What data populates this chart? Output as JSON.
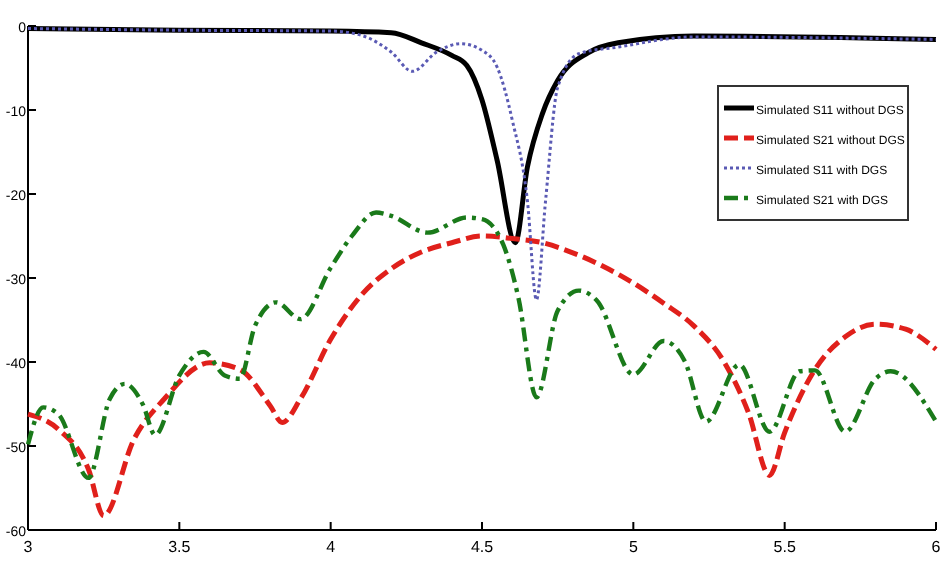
{
  "chart_data": {
    "type": "line",
    "xlim": [
      3,
      6
    ],
    "ylim": [
      -60,
      0
    ],
    "xticks": [
      3,
      3.5,
      4,
      4.5,
      5,
      5.5,
      6
    ],
    "yticks": [
      0,
      -10,
      -20,
      -30,
      -40,
      -50,
      -60
    ],
    "grid": false,
    "legend": "top right",
    "series": [
      {
        "name": "Simulated S11 without DGS",
        "color": "#000000",
        "line_style": "solid",
        "x": [
          3,
          3.5,
          4,
          4.2,
          4.3,
          4.4,
          4.45,
          4.5,
          4.55,
          4.61,
          4.65,
          4.7,
          4.75,
          4.85,
          4.95,
          5.2,
          6
        ],
        "values": [
          -0.3,
          -0.5,
          -0.6,
          -0.8,
          -2,
          -3.5,
          -4.7,
          -8.8,
          -16,
          -25.8,
          -16.8,
          -10.4,
          -6.5,
          -3.2,
          -2,
          -1.2,
          -1.6
        ]
      },
      {
        "name": "Simulated S21 without DGS",
        "color": "#e0201b",
        "line_style": "dashed",
        "x": [
          3,
          3.1,
          3.2,
          3.25,
          3.35,
          3.45,
          3.6,
          3.7,
          3.8,
          3.84,
          3.9,
          4,
          4.1,
          4.2,
          4.3,
          4.4,
          4.5,
          4.6,
          4.7,
          4.8,
          4.9,
          5,
          5.1,
          5.2,
          5.3,
          5.38,
          5.45,
          5.5,
          5.6,
          5.7,
          5.8,
          5.9,
          6
        ],
        "values": [
          -46.2,
          -48,
          -52.8,
          -58.3,
          -49.2,
          -44.4,
          -40.1,
          -40.9,
          -45.2,
          -47.2,
          -44.4,
          -37.3,
          -32.1,
          -28.9,
          -26.9,
          -25.8,
          -25,
          -25.3,
          -25.8,
          -27,
          -28.6,
          -30.6,
          -33,
          -35.7,
          -40,
          -46,
          -53.5,
          -48.4,
          -40.9,
          -37,
          -35.5,
          -36.1,
          -38.5
        ]
      },
      {
        "name": "Simulated S11 with DGS",
        "color": "#5a5ab4",
        "line_style": "dotted",
        "x": [
          3,
          3.5,
          4,
          4.1,
          4.2,
          4.27,
          4.35,
          4.43,
          4.5,
          4.55,
          4.6,
          4.65,
          4.68,
          4.71,
          4.75,
          4.82,
          4.95,
          5.2,
          6
        ],
        "values": [
          -0.3,
          -0.5,
          -0.6,
          -1.1,
          -3.1,
          -5.4,
          -3.1,
          -2.1,
          -2.9,
          -4.9,
          -11.2,
          -20.8,
          -32.6,
          -20.8,
          -7.3,
          -3.3,
          -2.5,
          -1.3,
          -1.6
        ]
      },
      {
        "name": "Simulated S21 with DGS",
        "color": "#1a7a1a",
        "line_style": "dashdot",
        "x": [
          3,
          3.05,
          3.1,
          3.2,
          3.27,
          3.32,
          3.38,
          3.42,
          3.5,
          3.58,
          3.65,
          3.7,
          3.75,
          3.82,
          3.9,
          4,
          4.07,
          4.15,
          4.2,
          4.32,
          4.45,
          4.5,
          4.57,
          4.62,
          4.68,
          4.75,
          4.82,
          4.88,
          5,
          5.1,
          5.17,
          5.24,
          5.35,
          5.45,
          5.55,
          5.6,
          5.7,
          5.8,
          5.85,
          6
        ],
        "values": [
          -49.8,
          -45.4,
          -46.2,
          -53.8,
          -44.4,
          -42.6,
          -45.1,
          -48.7,
          -41.6,
          -38.8,
          -41.6,
          -42,
          -35.7,
          -32.9,
          -34.9,
          -28.8,
          -25,
          -22.2,
          -22.6,
          -24.6,
          -22.8,
          -23,
          -26,
          -32.3,
          -44.2,
          -33.9,
          -31.5,
          -32.7,
          -41.5,
          -37.5,
          -39.9,
          -47.1,
          -40.3,
          -48.3,
          -41.1,
          -41,
          -48.3,
          -42,
          -41.1,
          -47.1
        ]
      }
    ]
  }
}
